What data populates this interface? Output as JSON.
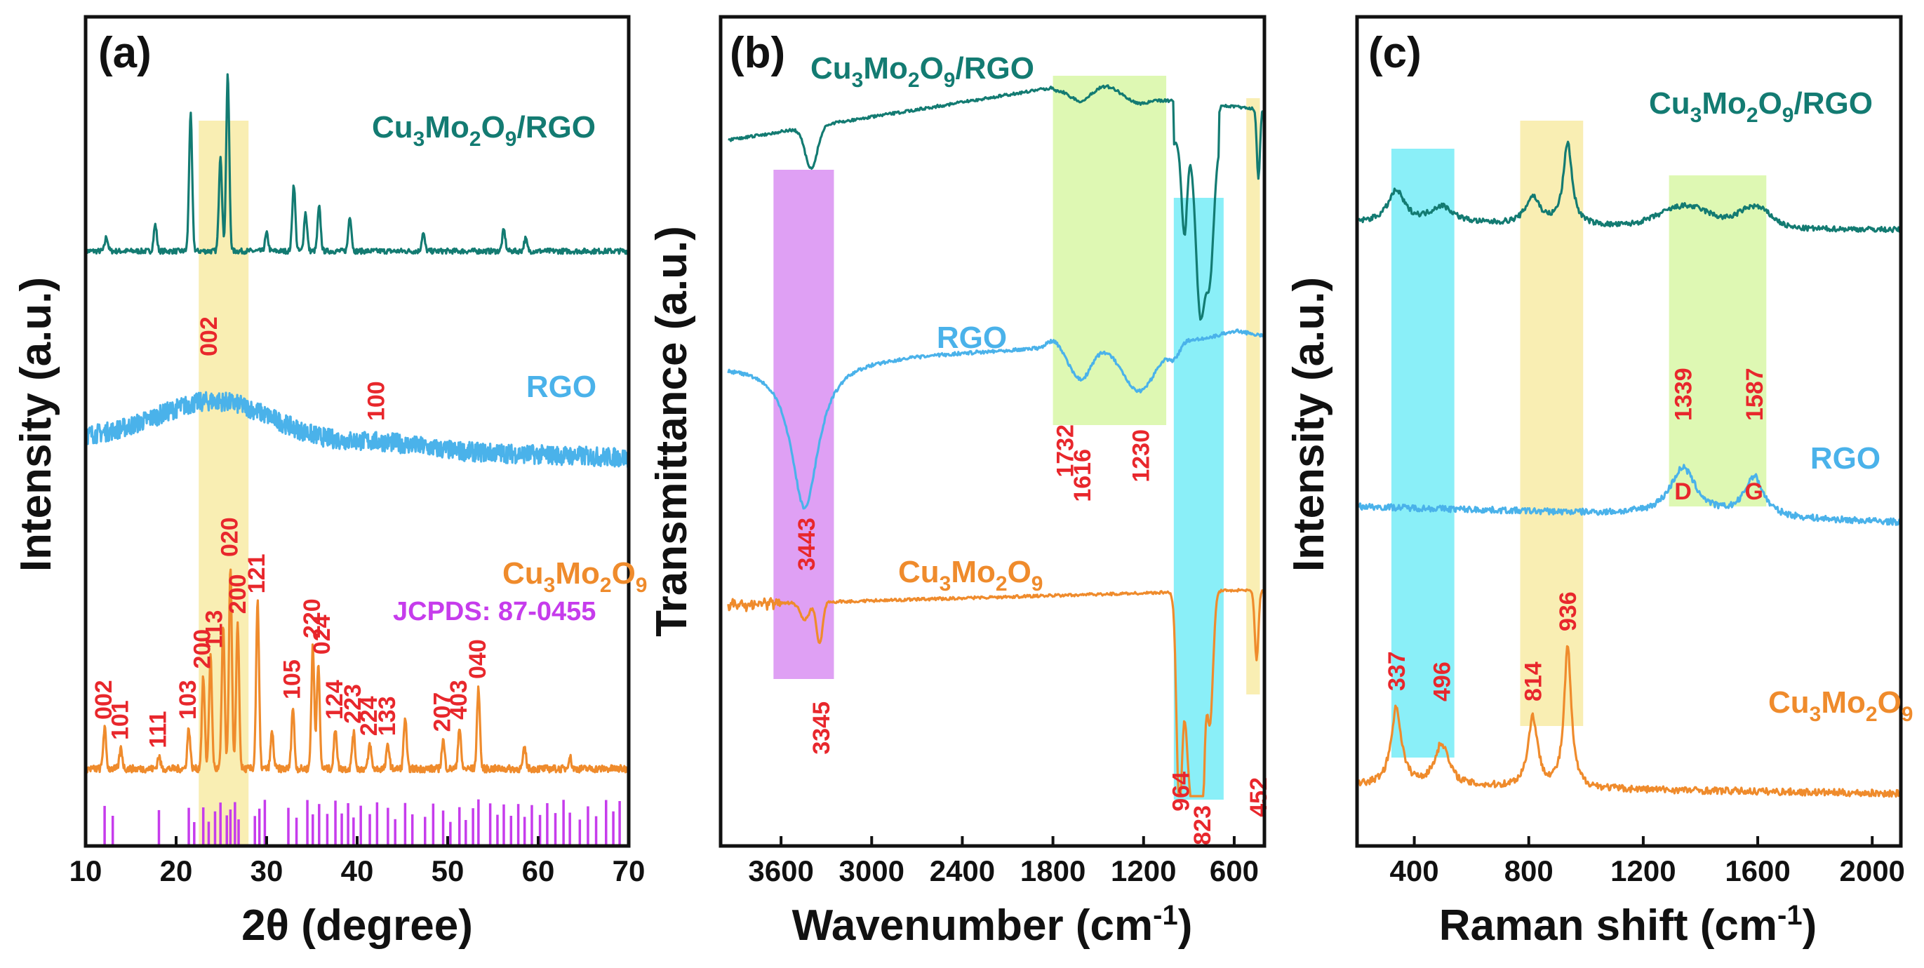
{
  "colors": {
    "composite": "#137b72",
    "rgo": "#4ab2ea",
    "cmo": "#ef8b2c",
    "peak_label": "#e8272c",
    "jcpds": "#c63cec",
    "band_yellow": "#f7e89a",
    "band_green": "#d3f59a",
    "band_cyan": "#63e9f5",
    "band_purple": "#d480f0"
  },
  "chart_data": [
    {
      "type": "line",
      "panel": "(a)",
      "xlabel": "2θ (degree)",
      "ylabel": "Intensity (a.u.)",
      "xlim": [
        10,
        70
      ],
      "xticks": [
        "10",
        "20",
        "30",
        "40",
        "50",
        "60",
        "70"
      ],
      "series": [
        {
          "name": "Cu3Mo2O9/RGO",
          "label_base": "Cu",
          "label_parts": [
            "Cu",
            "3",
            "Mo",
            "2",
            "O",
            "9",
            "/RGO"
          ],
          "peaks": [
            [
              12.3,
              0.08
            ],
            [
              17.7,
              0.15
            ],
            [
              21.6,
              0.78
            ],
            [
              24.9,
              0.55
            ],
            [
              25.7,
              1.0
            ],
            [
              30.0,
              0.1
            ],
            [
              33.0,
              0.38
            ],
            [
              34.3,
              0.22
            ],
            [
              35.8,
              0.25
            ],
            [
              39.2,
              0.2
            ],
            [
              47.3,
              0.1
            ],
            [
              56.2,
              0.12
            ],
            [
              58.6,
              0.07
            ]
          ]
        },
        {
          "name": "RGO",
          "broad_peak_center": 24.5
        },
        {
          "name": "Cu3Mo2O9",
          "label_parts": [
            "Cu",
            "3",
            "Mo",
            "2",
            "O",
            "9"
          ],
          "peaks": [
            [
              12.1,
              0.2
            ],
            [
              13.9,
              0.1
            ],
            [
              18.1,
              0.06
            ],
            [
              21.4,
              0.2
            ],
            [
              23.0,
              0.45
            ],
            [
              23.8,
              0.55
            ],
            [
              25.2,
              0.7
            ],
            [
              26.0,
              1.0
            ],
            [
              26.8,
              0.72
            ],
            [
              29.0,
              0.82
            ],
            [
              30.6,
              0.18
            ],
            [
              32.9,
              0.3
            ],
            [
              35.1,
              0.6
            ],
            [
              35.7,
              0.52
            ],
            [
              37.6,
              0.2
            ],
            [
              39.6,
              0.18
            ],
            [
              41.4,
              0.12
            ],
            [
              43.4,
              0.12
            ],
            [
              45.3,
              0.25
            ],
            [
              49.5,
              0.14
            ],
            [
              51.3,
              0.2
            ],
            [
              53.4,
              0.4
            ],
            [
              58.5,
              0.1
            ],
            [
              63.5,
              0.06
            ]
          ]
        }
      ],
      "rgo_hkl": [
        {
          "label": "002",
          "x": 24.5
        },
        {
          "label": "100",
          "x": 43.0
        }
      ],
      "cmo_hkl": [
        {
          "label": "002",
          "x": 12.1
        },
        {
          "label": "101",
          "x": 13.9
        },
        {
          "label": "111",
          "x": 18.1
        },
        {
          "label": "103",
          "x": 21.4
        },
        {
          "label": "200",
          "x": 23.0
        },
        {
          "label": "113",
          "x": 24.3
        },
        {
          "label": "020",
          "x": 26.0
        },
        {
          "label": "200",
          "x": 26.9
        },
        {
          "label": "121",
          "x": 29.0
        },
        {
          "label": "105",
          "x": 32.9
        },
        {
          "label": "220",
          "x": 35.1
        },
        {
          "label": "024",
          "x": 36.2
        },
        {
          "label": "124",
          "x": 37.6
        },
        {
          "label": "223",
          "x": 39.6
        },
        {
          "label": "224",
          "x": 41.4
        },
        {
          "label": "133",
          "x": 43.4
        },
        {
          "label": "207",
          "x": 49.5
        },
        {
          "label": "403",
          "x": 51.3
        },
        {
          "label": "040",
          "x": 53.4
        }
      ],
      "jcpds_label": "JCPDS: 87-0455",
      "reference_lines": [
        12.1,
        13.0,
        18.1,
        21.4,
        22.0,
        23.0,
        23.6,
        24.3,
        24.9,
        25.6,
        26.0,
        26.5,
        26.9,
        28.7,
        29.2,
        29.8,
        32.4,
        33.3,
        34.5,
        35.1,
        35.8,
        36.7,
        37.6,
        38.3,
        39.0,
        39.6,
        40.4,
        41.4,
        42.2,
        43.4,
        44.2,
        45.3,
        46.1,
        47.5,
        48.4,
        49.5,
        50.3,
        51.3,
        52.0,
        52.8,
        53.4,
        54.7,
        55.5,
        56.2,
        57.0,
        57.8,
        58.5,
        59.3,
        60.2,
        61.0,
        61.9,
        62.8,
        63.5,
        64.6,
        65.5,
        66.4,
        67.5,
        68.3,
        69.0
      ],
      "bands": [
        {
          "from": 22.5,
          "to": 28.0,
          "color": "yellow"
        }
      ]
    },
    {
      "type": "line",
      "panel": "(b)",
      "xlabel": "Wavenumber (cm",
      "xlabel_sup": "-1",
      "xlabel_end": ")",
      "ylabel": "Transmittance (a.u.)",
      "xlim": [
        4000,
        400
      ],
      "xticks": [
        "3600",
        "3000",
        "2400",
        "1800",
        "1200",
        "600"
      ],
      "series": [
        {
          "name": "Cu3Mo2O9/RGO",
          "label_parts": [
            "Cu",
            "3",
            "Mo",
            "2",
            "O",
            "9",
            "/RGO"
          ]
        },
        {
          "name": "RGO"
        },
        {
          "name": "Cu3Mo2O9",
          "label_parts": [
            "Cu",
            "3",
            "Mo",
            "2",
            "O",
            "9"
          ]
        }
      ],
      "peak_labels": [
        {
          "label": "3443",
          "x": 3443
        },
        {
          "label": "1732",
          "x": 1732
        },
        {
          "label": "1616",
          "x": 1616
        },
        {
          "label": "1230",
          "x": 1230
        },
        {
          "label": "3345",
          "x": 3345
        },
        {
          "label": "964",
          "x": 964
        },
        {
          "label": "823",
          "x": 823
        },
        {
          "label": "452",
          "x": 452
        }
      ],
      "bands": [
        {
          "from": 3650,
          "to": 3250,
          "color": "purple"
        },
        {
          "from": 1800,
          "to": 1050,
          "color": "green"
        },
        {
          "from": 1000,
          "to": 670,
          "color": "cyan"
        },
        {
          "from": 520,
          "to": 430,
          "color": "yellow"
        }
      ]
    },
    {
      "type": "line",
      "panel": "(c)",
      "xlabel": "Raman shift (cm",
      "xlabel_sup": "-1",
      "xlabel_end": ")",
      "ylabel": "Intensity (a.u.)",
      "xlim": [
        200,
        2100
      ],
      "xticks": [
        "400",
        "800",
        "1200",
        "1600",
        "2000"
      ],
      "series": [
        {
          "name": "Cu3Mo2O9/RGO",
          "label_parts": [
            "Cu",
            "3",
            "Mo",
            "2",
            "O",
            "9",
            "/RGO"
          ]
        },
        {
          "name": "RGO"
        },
        {
          "name": "Cu3Mo2O9",
          "label_parts": [
            "Cu",
            "3",
            "Mo",
            "2",
            "O",
            "9"
          ]
        }
      ],
      "peak_labels": [
        {
          "label": "1339",
          "x": 1339
        },
        {
          "label": "1587",
          "x": 1587
        },
        {
          "label": "337",
          "x": 337
        },
        {
          "label": "496",
          "x": 496
        },
        {
          "label": "814",
          "x": 814
        },
        {
          "label": "936",
          "x": 936
        }
      ],
      "band_letters": [
        {
          "label": "D",
          "x": 1339
        },
        {
          "label": "G",
          "x": 1587
        }
      ],
      "bands": [
        {
          "from": 320,
          "to": 540,
          "color": "cyan"
        },
        {
          "from": 770,
          "to": 990,
          "color": "yellow"
        },
        {
          "from": 1290,
          "to": 1630,
          "color": "green"
        }
      ]
    }
  ]
}
